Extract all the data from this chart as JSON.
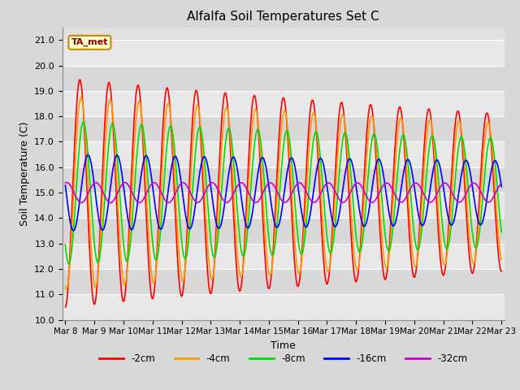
{
  "title": "Alfalfa Soil Temperatures Set C",
  "xlabel": "Time",
  "ylabel": "Soil Temperature (C)",
  "ylim": [
    10.0,
    21.5
  ],
  "yticks": [
    10.0,
    11.0,
    12.0,
    13.0,
    14.0,
    15.0,
    16.0,
    17.0,
    18.0,
    19.0,
    20.0,
    21.0
  ],
  "bg_color": "#d8d8d8",
  "plot_bg_color": "#e0e0e0",
  "line_colors": {
    "-2cm": "#ff0000",
    "-4cm": "#ff9900",
    "-8cm": "#00dd00",
    "-16cm": "#0000ff",
    "-32cm": "#cc00cc"
  },
  "annotation_text": "TA_met",
  "annotation_color": "#880000",
  "n_points": 1500,
  "t_start": 0,
  "t_end": 15,
  "x_tick_labels": [
    "Mar 8",
    "Mar 9",
    "Mar 10",
    "Mar 11",
    "Mar 12",
    "Mar 13",
    "Mar 14",
    "Mar 15",
    "Mar 16",
    "Mar 17",
    "Mar 18",
    "Mar 19",
    "Mar 20",
    "Mar 21",
    "Mar 22",
    "Mar 23"
  ],
  "x_tick_positions": [
    0,
    1,
    2,
    3,
    4,
    5,
    6,
    7,
    8,
    9,
    10,
    11,
    12,
    13,
    14,
    15
  ],
  "depths": {
    "-2cm": {
      "amplitude": 4.5,
      "phase": 0.0,
      "mean": 15.0,
      "decay": 0.025
    },
    "-4cm": {
      "amplitude": 3.8,
      "phase": 0.04,
      "mean": 15.0,
      "decay": 0.022
    },
    "-8cm": {
      "amplitude": 2.8,
      "phase": 0.12,
      "mean": 15.0,
      "decay": 0.018
    },
    "-16cm": {
      "amplitude": 1.5,
      "phase": 0.28,
      "mean": 15.0,
      "decay": 0.012
    },
    "-32cm": {
      "amplitude": 0.4,
      "phase": 0.55,
      "mean": 15.0,
      "decay": 0.004
    }
  }
}
